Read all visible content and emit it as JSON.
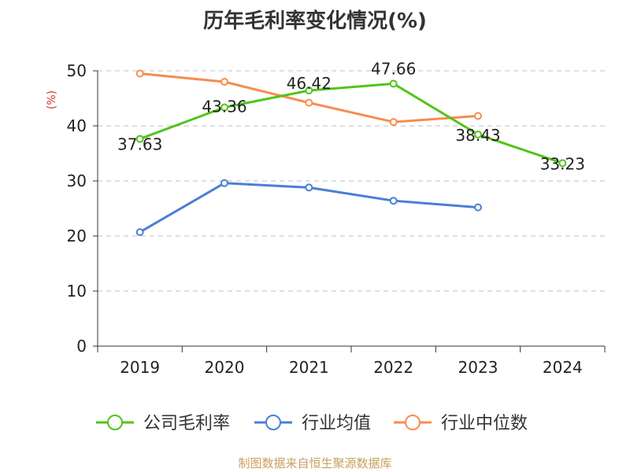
{
  "chart_data": {
    "type": "line",
    "title": "历年毛利率变化情况(%)",
    "ylabel": "(%)",
    "categories": [
      "2019",
      "2020",
      "2021",
      "2022",
      "2023",
      "2024"
    ],
    "ylim": [
      0,
      50
    ],
    "yticks": [
      0,
      10,
      20,
      30,
      40,
      50
    ],
    "grid": true,
    "legend_position": "bottom",
    "series": [
      {
        "name": "公司毛利率",
        "color": "#52c41a",
        "values": [
          37.63,
          43.36,
          46.42,
          47.66,
          38.43,
          33.23
        ],
        "labels": [
          "37.63",
          "43.36",
          "46.42",
          "47.66",
          "38.43",
          "33.23"
        ]
      },
      {
        "name": "行业均值",
        "color": "#4a7fd6",
        "values": [
          20.7,
          29.6,
          28.8,
          26.4,
          25.2,
          null
        ],
        "labels": []
      },
      {
        "name": "行业中位数",
        "color": "#f78c50",
        "values": [
          49.5,
          48.0,
          44.2,
          40.7,
          41.8,
          null
        ],
        "labels": []
      }
    ]
  },
  "footer": "制图数据来自恒生聚源数据库"
}
